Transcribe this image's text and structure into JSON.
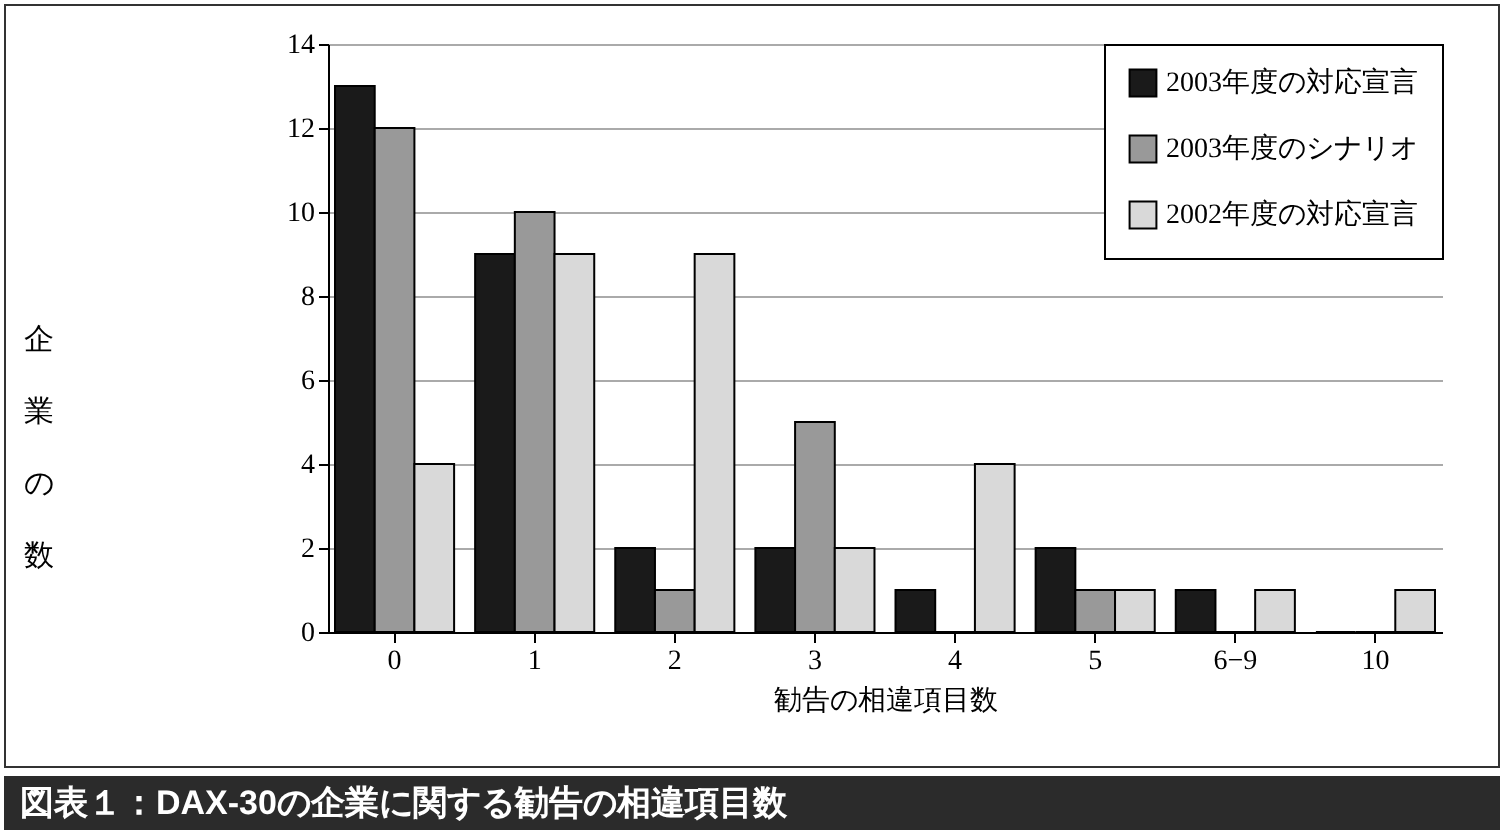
{
  "chart_data": {
    "type": "bar",
    "title": "図表１：DAX-30の企業に関する勧告の相違項目数",
    "xlabel": "勧告の相違項目数",
    "ylabel": "企業の数",
    "categories": [
      "0",
      "1",
      "2",
      "3",
      "4",
      "5",
      "6−9",
      "10"
    ],
    "series": [
      {
        "name": "2003年度の対応宣言",
        "color": "#1a1a1a",
        "values": [
          13,
          9,
          2,
          2,
          1,
          2,
          1,
          0
        ]
      },
      {
        "name": "2003年度のシナリオ",
        "color": "#999999",
        "values": [
          12,
          10,
          1,
          5,
          0,
          1,
          0,
          0
        ]
      },
      {
        "name": "2002年度の対応宣言",
        "color": "#d9d9d9",
        "values": [
          4,
          9,
          9,
          2,
          4,
          1,
          1,
          1
        ]
      }
    ],
    "ylim": [
      0,
      14
    ],
    "yticks": [
      0,
      2,
      4,
      6,
      8,
      10,
      12,
      14
    ],
    "grid": "y",
    "legend": "top right"
  }
}
